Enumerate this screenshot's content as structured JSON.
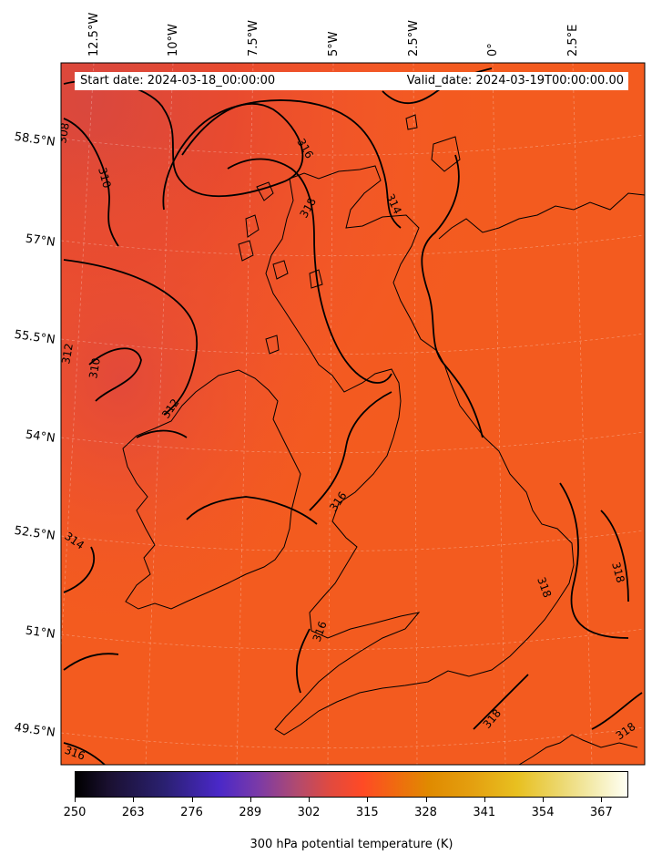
{
  "header": {
    "start_label": "Start date: 2024-03-18_00:00:00",
    "valid_label": "Valid_date: 2024-03-19T00:00:00.00"
  },
  "top_longitude_labels": [
    "12.5°W",
    "10°W",
    "7.5°W",
    "5°W",
    "2.5°W",
    "0°",
    "2.5°E"
  ],
  "left_latitude_labels": [
    "58.5°N",
    "57°N",
    "55.5°N",
    "54°N",
    "52.5°N",
    "51°N",
    "49.5°N"
  ],
  "contour_labels": [
    "308",
    "310",
    "316",
    "314",
    "318",
    "312",
    "310",
    "312",
    "314",
    "316",
    "316",
    "318",
    "318",
    "318",
    "318",
    "316"
  ],
  "colorbar": {
    "ticks": [
      "250",
      "263",
      "276",
      "289",
      "302",
      "315",
      "328",
      "341",
      "354",
      "367"
    ],
    "range": [
      250,
      373
    ],
    "title": "300 hPa potential temperature (K)",
    "colormap": "CMRmap"
  },
  "colors": {
    "field_main": "#f45a21",
    "field_cool": "#e04a3c",
    "contour": "#000000",
    "coast": "#000000"
  }
}
